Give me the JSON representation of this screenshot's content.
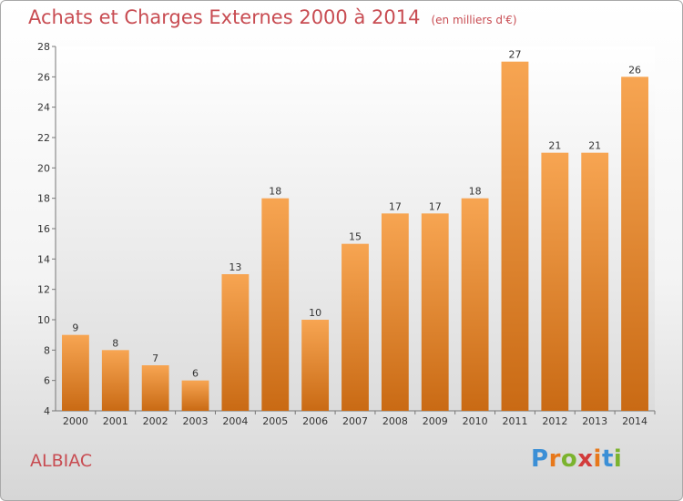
{
  "title": "Achats et Charges Externes 2000 à 2014",
  "unit_note": "(en milliers d'€)",
  "commune": "ALBIAC",
  "logo": {
    "text": "Proxiti",
    "letters": [
      "P",
      "r",
      "o",
      "x",
      "i",
      "t",
      "i"
    ],
    "colors": [
      "#3b8fd6",
      "#e7781b",
      "#7bb32e",
      "#d23b3b",
      "#e7781b",
      "#3b8fd6",
      "#7bb32e"
    ]
  },
  "chart_data": {
    "type": "bar",
    "categories": [
      "2000",
      "2001",
      "2002",
      "2003",
      "2004",
      "2005",
      "2006",
      "2007",
      "2008",
      "2009",
      "2010",
      "2011",
      "2012",
      "2013",
      "2014"
    ],
    "values": [
      9,
      8,
      7,
      6,
      13,
      18,
      10,
      15,
      17,
      17,
      18,
      27,
      21,
      21,
      26
    ],
    "ylim": [
      4,
      28
    ],
    "yticks": [
      4,
      6,
      8,
      10,
      12,
      14,
      16,
      18,
      20,
      22,
      24,
      26,
      28
    ],
    "grid": false,
    "bar_color_top": "#f7a552",
    "bar_color_bottom": "#c96a14",
    "title_color": "#c84c52"
  }
}
